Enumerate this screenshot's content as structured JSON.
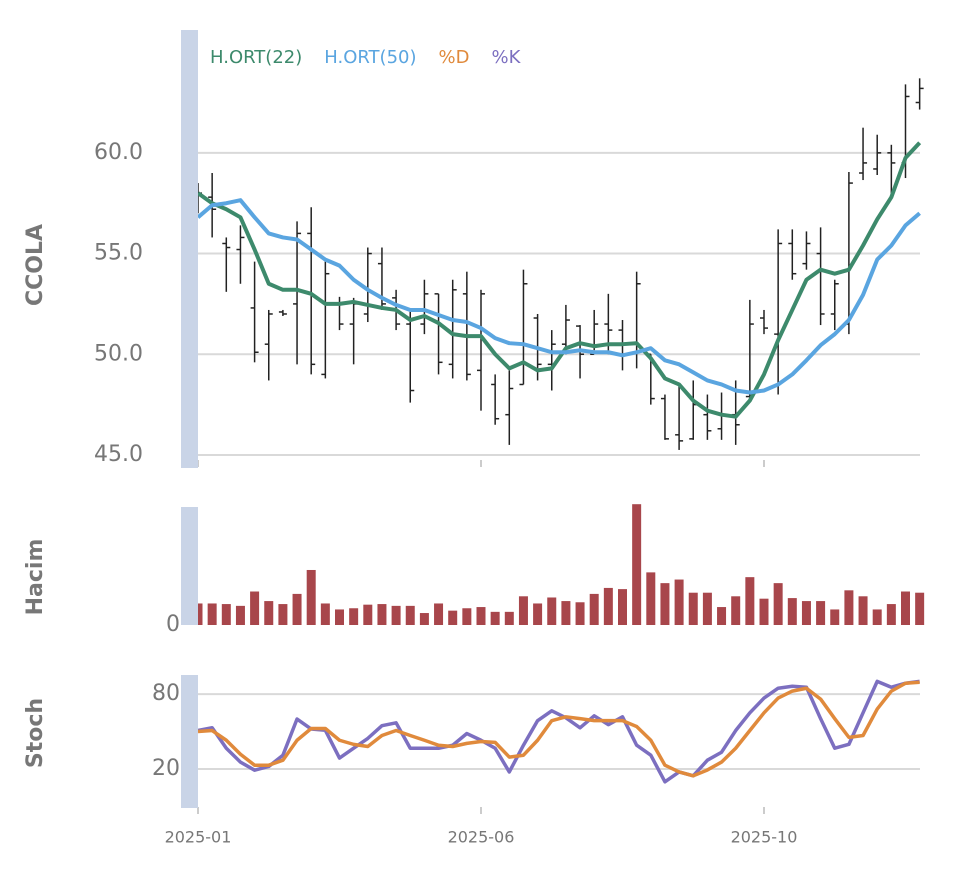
{
  "chart_data": [
    {
      "type": "ohlc",
      "ylabel": "CCOLA",
      "color": "#222222",
      "grid": true,
      "ylim": [
        44.75,
        66.1
      ],
      "yticks": [
        {
          "value": 45,
          "label": "45.0"
        },
        {
          "value": 50,
          "label": "50.0"
        },
        {
          "value": 55,
          "label": "55.0"
        },
        {
          "value": 60,
          "label": "60.0"
        }
      ],
      "open": [
        57.5,
        57.8,
        55.5,
        55.2,
        52.3,
        50.5,
        52.1,
        52.5,
        56.0,
        49.0,
        52.5,
        51.5,
        52.0,
        54.5,
        52.8,
        51.5,
        51.5,
        53.0,
        49.5,
        53.0,
        49.2,
        48.5,
        47.0,
        48.5,
        51.8,
        49.5,
        50.5,
        51.4,
        50.0,
        51.5,
        51.2,
        50.5,
        50.0,
        47.8,
        46.0,
        45.8,
        47.0,
        46.3,
        47.0,
        47.9,
        51.8,
        51.0,
        55.5,
        54.5,
        55.0,
        52.0,
        51.5,
        59.0,
        59.2,
        60.0,
        59.5,
        62.5
      ],
      "high": [
        58.5,
        59.0,
        55.8,
        56.4,
        54.6,
        52.2,
        52.2,
        56.6,
        57.3,
        54.6,
        52.85,
        52.8,
        55.3,
        55.3,
        53.2,
        52.2,
        53.7,
        53.0,
        53.7,
        54.1,
        53.2,
        49.0,
        49.2,
        54.2,
        52.0,
        51.2,
        52.45,
        51.45,
        52.2,
        53.0,
        51.7,
        54.1,
        50.0,
        48.0,
        48.5,
        48.7,
        48.0,
        48.1,
        48.7,
        52.7,
        52.2,
        56.2,
        56.2,
        56.1,
        56.3,
        53.7,
        59.05,
        61.25,
        60.9,
        60.4,
        63.4,
        63.7
      ],
      "low": [
        57.0,
        55.8,
        53.1,
        53.5,
        49.6,
        48.7,
        51.9,
        49.5,
        49.0,
        48.8,
        51.2,
        49.5,
        51.6,
        52.2,
        51.2,
        47.6,
        51.0,
        49.0,
        48.8,
        48.7,
        47.2,
        46.5,
        45.5,
        48.5,
        48.7,
        48.2,
        50.0,
        48.8,
        50.2,
        50.0,
        49.2,
        49.3,
        47.5,
        45.75,
        45.25,
        45.75,
        45.75,
        45.75,
        45.5,
        47.7,
        51.0,
        48.0,
        53.7,
        54.2,
        51.45,
        51.2,
        51.0,
        58.65,
        58.9,
        57.7,
        58.75,
        62.15
      ],
      "close": [
        58.0,
        57.2,
        55.3,
        55.8,
        50.1,
        52.0,
        52.0,
        56.0,
        49.5,
        54.0,
        51.5,
        52.5,
        55.0,
        52.5,
        51.5,
        48.2,
        53.0,
        49.6,
        53.2,
        49.0,
        53.0,
        46.8,
        48.3,
        53.5,
        49.5,
        50.5,
        51.7,
        50.0,
        51.5,
        51.2,
        50.5,
        53.5,
        47.8,
        45.8,
        45.7,
        47.5,
        46.2,
        47.0,
        46.5,
        51.5,
        51.3,
        55.5,
        54.0,
        55.5,
        52.0,
        53.5,
        58.5,
        59.5,
        60.0,
        59.5,
        62.8,
        63.2
      ],
      "series": [
        {
          "name": "H.ORT(22)",
          "color": "#3d8a6c",
          "values": [
            58.0,
            57.5,
            57.2,
            56.8,
            55.2,
            53.5,
            53.2,
            53.2,
            53.0,
            52.5,
            52.5,
            52.6,
            52.45,
            52.3,
            52.2,
            51.7,
            51.9,
            51.55,
            51.0,
            50.9,
            50.9,
            50.0,
            49.3,
            49.6,
            49.2,
            49.3,
            50.3,
            50.55,
            50.4,
            50.5,
            50.5,
            50.55,
            49.8,
            48.8,
            48.5,
            47.7,
            47.2,
            47.0,
            46.9,
            47.7,
            49.0,
            50.7,
            52.2,
            53.7,
            54.2,
            54.0,
            54.2,
            55.4,
            56.7,
            57.8,
            59.75,
            60.5
          ]
        },
        {
          "name": "H.ORT(50)",
          "color": "#5aa5e0",
          "values": [
            56.8,
            57.4,
            57.5,
            57.65,
            56.8,
            56.0,
            55.8,
            55.7,
            55.2,
            54.7,
            54.4,
            53.7,
            53.2,
            52.8,
            52.45,
            52.2,
            52.2,
            51.95,
            51.7,
            51.6,
            51.3,
            50.8,
            50.55,
            50.5,
            50.3,
            50.1,
            50.1,
            50.2,
            50.1,
            50.1,
            49.95,
            50.1,
            50.3,
            49.7,
            49.5,
            49.1,
            48.7,
            48.5,
            48.2,
            48.1,
            48.2,
            48.5,
            49.0,
            49.7,
            50.45,
            51.0,
            51.7,
            52.95,
            54.7,
            55.4,
            56.4,
            57.0
          ]
        }
      ]
    },
    {
      "type": "bar",
      "ylabel": "Hacim",
      "color": "#a8464b",
      "grid": false,
      "ylim": [
        0,
        102
      ],
      "yticks": [
        0
      ],
      "values": [
        18,
        18,
        17.5,
        16,
        28,
        20,
        17.5,
        26,
        46,
        18,
        13,
        14,
        17,
        17.5,
        16,
        16,
        10,
        18,
        12,
        14,
        15,
        11,
        11,
        24,
        18,
        23,
        20,
        19,
        26,
        31,
        30,
        101,
        44,
        35,
        38,
        27,
        27,
        15,
        24,
        40,
        22,
        35,
        22.5,
        20,
        20,
        13,
        29,
        24,
        13,
        17.5,
        28,
        27
      ]
    },
    {
      "type": "line",
      "ylabel": "Stoch",
      "grid": true,
      "ylim": [
        -10.5,
        94.5
      ],
      "yticks": [
        20,
        80
      ],
      "categories": [
        "2025-01",
        null,
        null,
        null,
        null,
        null,
        null,
        null,
        null,
        null,
        null,
        null,
        null,
        null,
        null,
        null,
        null,
        null,
        null,
        null,
        "2025-06",
        null,
        null,
        null,
        null,
        null,
        null,
        null,
        null,
        null,
        null,
        null,
        null,
        null,
        null,
        null,
        null,
        null,
        null,
        null,
        "2025-10",
        null,
        null,
        null,
        null,
        null,
        null,
        null,
        null,
        null,
        null,
        null
      ],
      "series": [
        {
          "name": "%D",
          "color": "#e08a3c",
          "values": [
            50,
            50.8,
            43,
            31.8,
            23,
            23,
            27,
            43,
            52.4,
            52.4,
            43,
            39.7,
            38,
            46.8,
            50.8,
            46.8,
            43,
            39,
            38,
            40.5,
            42,
            41.3,
            29.5,
            31,
            43,
            58.7,
            61.8,
            60.3,
            58.7,
            58.7,
            58.7,
            54,
            43,
            23,
            17.6,
            14.5,
            19.2,
            25.5,
            36.6,
            50.8,
            65,
            76.8,
            82.4,
            84.7,
            76,
            60.3,
            45.3,
            46.8,
            68,
            82.4,
            88.7,
            89.5
          ]
        },
        {
          "name": "%K",
          "color": "#7c6fc0",
          "values": [
            50.8,
            53,
            36.6,
            25.5,
            19,
            22,
            31,
            60,
            52,
            51,
            28.7,
            36.6,
            44.5,
            54.7,
            57,
            36.6,
            36.6,
            36.6,
            39,
            48.4,
            43,
            36.6,
            17.6,
            39,
            58.7,
            66.6,
            61,
            53,
            62.6,
            55.5,
            61.8,
            39,
            31,
            9.7,
            17.6,
            14.5,
            27,
            33.4,
            50.8,
            65,
            76.8,
            84.7,
            86.3,
            85.5,
            60.3,
            36.6,
            39.7,
            65,
            90.2,
            85.5,
            88.7,
            90.2
          ]
        }
      ]
    }
  ]
}
